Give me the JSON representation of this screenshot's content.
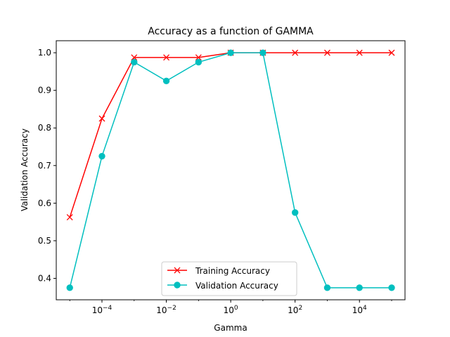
{
  "chart_data": {
    "type": "line",
    "title": "Accuracy as a function of GAMMA",
    "xlabel": "Gamma",
    "ylabel": "Validation Accuracy",
    "xscale": "log",
    "x": [
      1e-05,
      0.0001,
      0.001,
      0.01,
      0.1,
      1,
      10,
      100,
      1000,
      10000,
      100000
    ],
    "xlim": [
      3.8e-06,
      260000
    ],
    "ylim": [
      0.343,
      1.032
    ],
    "xticks": [
      {
        "base": "10",
        "exp": "−4",
        "value": 0.0001
      },
      {
        "base": "10",
        "exp": "−2",
        "value": 0.01
      },
      {
        "base": "10",
        "exp": "0",
        "value": 1
      },
      {
        "base": "10",
        "exp": "2",
        "value": 100
      },
      {
        "base": "10",
        "exp": "4",
        "value": 10000
      }
    ],
    "yticks": [
      {
        "label": "0.4",
        "value": 0.4
      },
      {
        "label": "0.5",
        "value": 0.5
      },
      {
        "label": "0.6",
        "value": 0.6
      },
      {
        "label": "0.7",
        "value": 0.7
      },
      {
        "label": "0.8",
        "value": 0.8
      },
      {
        "label": "0.9",
        "value": 0.9
      },
      {
        "label": "1.0",
        "value": 1.0
      }
    ],
    "grid": false,
    "legend_position": "bottom-center",
    "series": [
      {
        "name": "Training Accuracy",
        "color": "#ff0000",
        "marker": "x",
        "values": [
          0.5625,
          0.825,
          0.9875,
          0.9875,
          0.9875,
          1.0,
          1.0,
          1.0,
          1.0,
          1.0,
          1.0
        ]
      },
      {
        "name": "Validation Accuracy",
        "color": "#00bfbf",
        "marker": "circle",
        "values": [
          0.375,
          0.725,
          0.975,
          0.925,
          0.975,
          1.0,
          1.0,
          0.575,
          0.375,
          0.375,
          0.375
        ]
      }
    ]
  }
}
